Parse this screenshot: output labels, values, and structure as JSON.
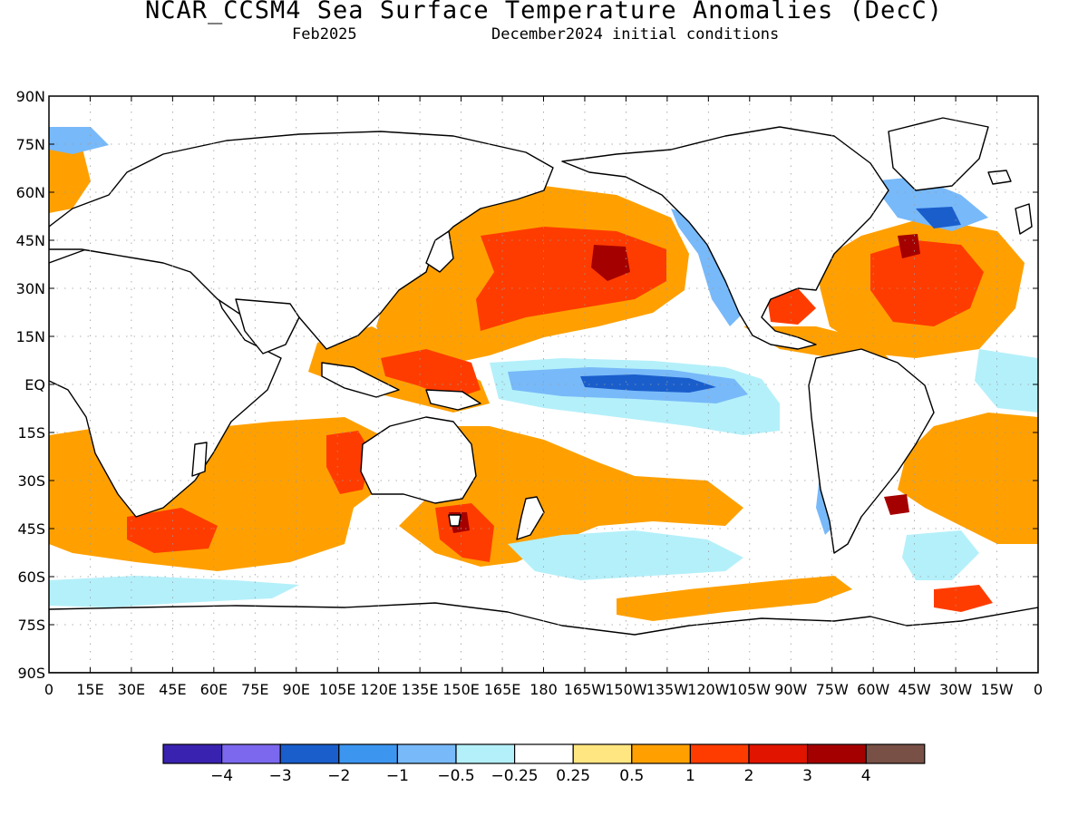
{
  "header": {
    "title": "NCAR_CCSM4 Sea Surface Temperature Anomalies (DecC)",
    "valid_month": "Feb2025",
    "init_text": "December2024 initial conditions"
  },
  "map": {
    "projection": "cylindrical equidistant",
    "lon_range": [
      0,
      360
    ],
    "lat_range": [
      -90,
      90
    ],
    "lat_labels": [
      "90N",
      "75N",
      "60N",
      "45N",
      "30N",
      "15N",
      "EQ",
      "15S",
      "30S",
      "45S",
      "60S",
      "75S",
      "90S"
    ],
    "lon_labels": [
      "0",
      "15E",
      "30E",
      "45E",
      "60E",
      "75E",
      "90E",
      "105E",
      "120E",
      "135E",
      "150E",
      "165E",
      "180",
      "165W",
      "150W",
      "135W",
      "120W",
      "105W",
      "90W",
      "75W",
      "60W",
      "45W",
      "30W",
      "15W",
      "0"
    ],
    "grid": true,
    "land_color": "#ffffff",
    "outline_color": "#000000"
  },
  "colorbar": {
    "colors": [
      "#3a22b0",
      "#7b68ee",
      "#1a5ecc",
      "#3c96f0",
      "#78b9f9",
      "#b4f0fa",
      "#ffffff",
      "#ffe680",
      "#ffa000",
      "#ff3c00",
      "#e11400",
      "#a50000",
      "#785046"
    ],
    "labels": [
      "−4",
      "−3",
      "−2",
      "−1",
      "−0.5",
      "−0.25",
      "0.25",
      "0.5",
      "1",
      "2",
      "3",
      "4"
    ]
  }
}
